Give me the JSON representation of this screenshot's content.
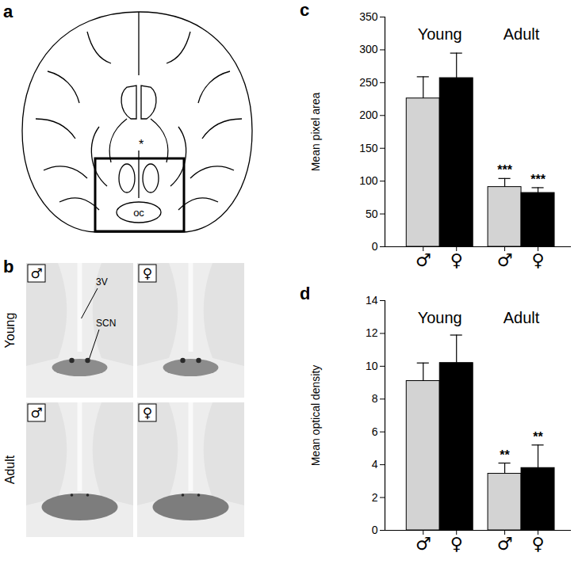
{
  "diagram": {
    "panel_a": {
      "panel_label": "a",
      "labels": [
        "*",
        "oc"
      ]
    },
    "panel_b": {
      "panel_label": "b",
      "row_labels": [
        "Young",
        "Adult"
      ],
      "column_labels": [
        "♂",
        "♀"
      ],
      "annotations": [
        "3V",
        "SCN"
      ]
    }
  },
  "chart_data": [
    {
      "type": "bar",
      "panel_label": "c",
      "ylabel": "Mean pixel area",
      "categories": [
        "♂",
        "♀",
        "♂",
        "♀"
      ],
      "category_groups": [
        "Young",
        "Young",
        "Adult",
        "Adult"
      ],
      "values": [
        226,
        257,
        91,
        82
      ],
      "errors": [
        33,
        38,
        13,
        8
      ],
      "annotations": [
        null,
        null,
        "***",
        "***"
      ],
      "colors": [
        "#d3d3d3",
        "#000000",
        "#d3d3d3",
        "#000000"
      ],
      "ylim": [
        0,
        350
      ],
      "yticks": [
        0,
        50,
        100,
        150,
        200,
        250,
        300,
        350
      ]
    },
    {
      "type": "bar",
      "panel_label": "d",
      "ylabel": "Mean optical density",
      "categories": [
        "♂",
        "♀",
        "♂",
        "♀"
      ],
      "category_groups": [
        "Young",
        "Young",
        "Adult",
        "Adult"
      ],
      "values": [
        9.1,
        10.2,
        3.45,
        3.8
      ],
      "errors": [
        1.1,
        1.7,
        0.65,
        1.4
      ],
      "annotations": [
        null,
        null,
        "**",
        "**"
      ],
      "colors": [
        "#d3d3d3",
        "#000000",
        "#d3d3d3",
        "#000000"
      ],
      "ylim": [
        0,
        14
      ],
      "yticks": [
        0,
        2,
        4,
        6,
        8,
        10,
        12,
        14
      ]
    }
  ]
}
